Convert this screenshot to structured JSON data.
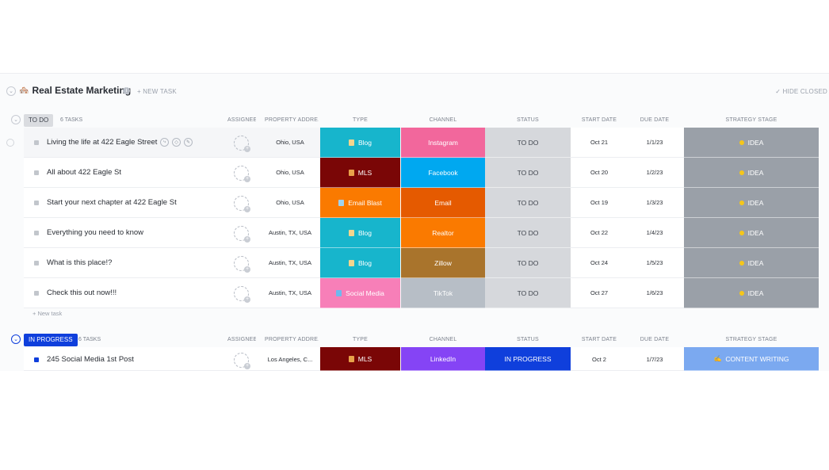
{
  "list": {
    "emoji": "🏘️",
    "title": "Real Estate Marketing",
    "new_task": "+ NEW TASK",
    "hide_closed": "✓ HIDE CLOSED",
    "new_task_inline": "+ New task"
  },
  "columns": [
    "ASSIGNEE",
    "PROPERTY ADDRE...",
    "TYPE",
    "CHANNEL",
    "STATUS",
    "START DATE",
    "DUE DATE",
    "STRATEGY STAGE"
  ],
  "groups": [
    {
      "status": "TO DO",
      "count": "6 TASKS",
      "tasks": [
        {
          "name": "Living the life at 422 Eagle Street",
          "address": "Ohio, USA",
          "type": "Blog",
          "channel": "Instagram",
          "status": "TO DO",
          "start": "Oct 21",
          "due": "1/1/23",
          "stage": "IDEA"
        },
        {
          "name": "All about 422 Eagle St",
          "address": "Ohio, USA",
          "type": "MLS",
          "channel": "Facebook",
          "status": "TO DO",
          "start": "Oct 20",
          "due": "1/2/23",
          "stage": "IDEA"
        },
        {
          "name": "Start your next chapter at 422 Eagle St",
          "address": "Ohio, USA",
          "type": "Email Blast",
          "channel": "Email",
          "status": "TO DO",
          "start": "Oct 19",
          "due": "1/3/23",
          "stage": "IDEA"
        },
        {
          "name": "Everything you need to know",
          "address": "Austin, TX, USA",
          "type": "Blog",
          "channel": "Realtor",
          "status": "TO DO",
          "start": "Oct 22",
          "due": "1/4/23",
          "stage": "IDEA"
        },
        {
          "name": "What is this place!?",
          "address": "Austin, TX, USA",
          "type": "Blog",
          "channel": "Zillow",
          "status": "TO DO",
          "start": "Oct 24",
          "due": "1/5/23",
          "stage": "IDEA"
        },
        {
          "name": "Check this out now!!!",
          "address": "Austin, TX, USA",
          "type": "Social Media",
          "channel": "TikTok",
          "status": "TO DO",
          "start": "Oct 27",
          "due": "1/6/23",
          "stage": "IDEA"
        }
      ]
    },
    {
      "status": "IN PROGRESS",
      "count": "6 TASKS",
      "tasks": [
        {
          "name": "245 Social Media 1st Post",
          "address": "Los Angeles, C...",
          "type": "MLS",
          "channel": "LinkedIn",
          "status": "IN PROGRESS",
          "start": "Oct 2",
          "due": "1/7/23",
          "stage": "CONTENT WRITING"
        }
      ]
    }
  ],
  "colors": {
    "blog": "#17b5cc",
    "mls": "#7a0606",
    "email_blast": "#fa7a00",
    "social_media": "#f77fb8",
    "instagram": "#f2679c",
    "facebook": "#00a8f0",
    "email": "#e55a00",
    "realtor": "#fa7a00",
    "zillow": "#a9742c",
    "tiktok": "#b7bec6",
    "linkedin": "#8544f5",
    "todo": "#d6d8dc",
    "in_progress": "#0f3fdc",
    "idea": "#9aa0a8",
    "content_writing": "#7ba9f0"
  }
}
